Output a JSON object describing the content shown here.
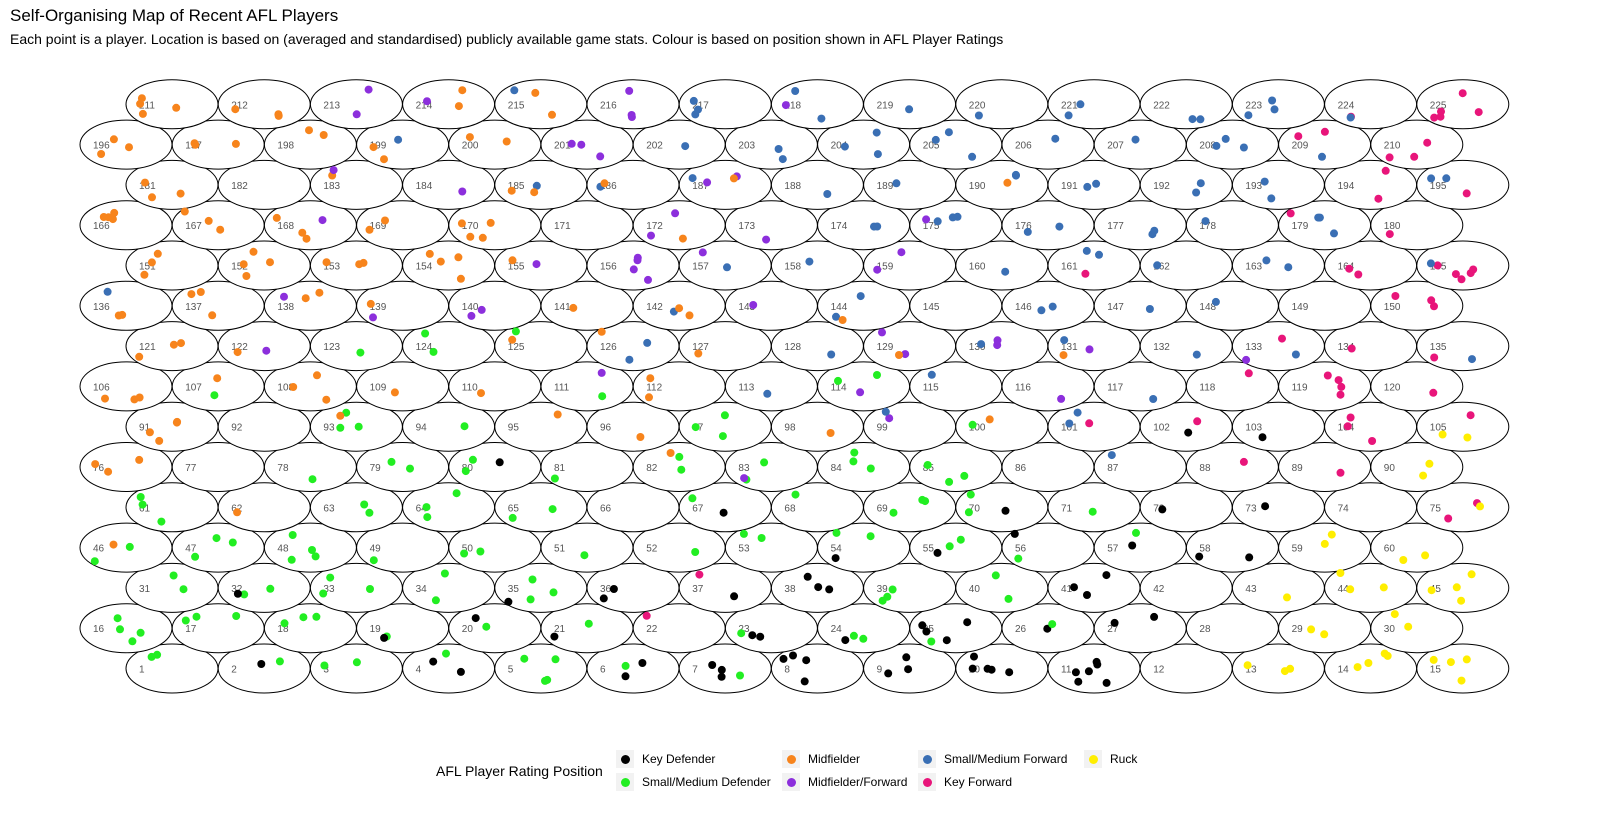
{
  "title": "Self-Organising Map of Recent AFL Players",
  "subtitle": "Each point is a player. Location is based on (averaged and standardised) publicly available game stats. Colour is based on position shown in AFL Player Ratings",
  "legend": {
    "title": "AFL Player Rating Position",
    "items": [
      {
        "key": "KD",
        "label": "Key Defender",
        "color": "#000000"
      },
      {
        "key": "SD",
        "label": "Small/Medium Defender",
        "color": "#22ee22"
      },
      {
        "key": "M",
        "label": "Midfielder",
        "color": "#f7841c"
      },
      {
        "key": "MF",
        "label": "Midfielder/Forward",
        "color": "#8c2fdc"
      },
      {
        "key": "SF",
        "label": "Small/Medium Forward",
        "color": "#3a6fb4"
      },
      {
        "key": "KF",
        "label": "Key Forward",
        "color": "#e8157a"
      },
      {
        "key": "R",
        "label": "Ruck",
        "color": "#ffee00"
      }
    ]
  },
  "chart_data": {
    "type": "scatter",
    "grid": {
      "kind": "hexagonal",
      "columns": 15,
      "rows": 15,
      "nodes": 225,
      "node_labels": "1-225"
    },
    "node_counts": {
      "1": {
        "SD": 2
      },
      "2": {
        "SD": 1,
        "KD": 1
      },
      "3": {
        "SD": 2
      },
      "4": {
        "SD": 1,
        "KD": 2
      },
      "5": {
        "SD": 4
      },
      "6": {
        "KD": 2,
        "SD": 1
      },
      "7": {
        "SD": 1,
        "KD": 3
      },
      "8": {
        "KD": 4
      },
      "9": {
        "KD": 3
      },
      "10": {
        "KD": 5
      },
      "11": {
        "KD": 6
      },
      "12": {},
      "13": {
        "R": 3
      },
      "14": {
        "R": 4
      },
      "15": {
        "R": 4
      },
      "16": {
        "SD": 4
      },
      "17": {
        "SD": 3
      },
      "18": {
        "SD": 3
      },
      "19": {
        "SD": 1,
        "KD": 1
      },
      "20": {
        "KD": 1,
        "SD": 1
      },
      "21": {
        "KD": 1,
        "SD": 1
      },
      "22": {
        "KF": 1
      },
      "23": {
        "KD": 2,
        "SD": 1
      },
      "24": {
        "KD": 1,
        "SD": 2
      },
      "25": {
        "KD": 4,
        "SD": 1
      },
      "26": {
        "KD": 1,
        "SD": 1
      },
      "27": {
        "KD": 2
      },
      "28": {},
      "29": {
        "R": 2
      },
      "30": {
        "R": 2
      },
      "31": {
        "SD": 2
      },
      "32": {
        "SD": 2,
        "KD": 1
      },
      "33": {
        "SD": 3
      },
      "34": {
        "SD": 2
      },
      "35": {
        "SD": 3,
        "KD": 1
      },
      "36": {
        "KD": 2
      },
      "37": {
        "KF": 1,
        "KD": 1
      },
      "38": {
        "KD": 3
      },
      "39": {
        "SD": 3
      },
      "40": {
        "SD": 2
      },
      "41": {
        "KD": 3
      },
      "42": {},
      "43": {
        "R": 1
      },
      "44": {
        "R": 3
      },
      "45": {
        "R": 4
      },
      "46": {
        "SD": 2,
        "M": 1
      },
      "47": {
        "SD": 3
      },
      "48": {
        "SD": 4
      },
      "49": {
        "SD": 1
      },
      "50": {
        "SD": 2
      },
      "51": {
        "SD": 1
      },
      "52": {
        "SD": 1
      },
      "53": {
        "SD": 2
      },
      "54": {
        "KD": 1,
        "SD": 2
      },
      "55": {
        "SD": 2,
        "KD": 1
      },
      "56": {
        "KD": 1,
        "SD": 1
      },
      "57": {
        "KD": 1,
        "SD": 1
      },
      "58": {
        "KD": 2
      },
      "59": {
        "R": 2
      },
      "60": {
        "R": 2
      },
      "61": {
        "SD": 3
      },
      "62": {
        "M": 1
      },
      "63": {
        "SD": 2
      },
      "64": {
        "SD": 3
      },
      "65": {
        "SD": 2
      },
      "66": {},
      "67": {
        "KD": 1,
        "SD": 1
      },
      "68": {
        "SD": 1
      },
      "69": {
        "SD": 3
      },
      "70": {
        "SD": 2,
        "KD": 1
      },
      "71": {
        "SD": 1
      },
      "72": {
        "KD": 1
      },
      "73": {
        "KD": 1
      },
      "74": {},
      "75": {
        "KF": 2,
        "R": 1
      },
      "76": {
        "M": 3
      },
      "77": {},
      "78": {
        "SD": 1
      },
      "79": {
        "SD": 2
      },
      "80": {
        "SD": 2,
        "KD": 1
      },
      "81": {
        "SD": 1
      },
      "82": {
        "SD": 2,
        "M": 1
      },
      "83": {
        "SD": 2,
        "MF": 1
      },
      "84": {
        "SD": 3
      },
      "85": {
        "SD": 3
      },
      "86": {},
      "87": {
        "SF": 1
      },
      "88": {
        "KF": 1
      },
      "89": {
        "KF": 1
      },
      "90": {
        "R": 2
      },
      "91": {
        "M": 4
      },
      "92": {},
      "93": {
        "SD": 3,
        "M": 1
      },
      "94": {
        "SD": 1
      },
      "95": {
        "M": 1
      },
      "96": {
        "M": 1
      },
      "97": {
        "SD": 3
      },
      "98": {
        "M": 1
      },
      "99": {
        "MF": 1,
        "SF": 1
      },
      "100": {
        "SD": 1,
        "M": 1
      },
      "101": {
        "SF": 2,
        "KF": 1
      },
      "102": {
        "KD": 1,
        "KF": 1
      },
      "103": {
        "KD": 1
      },
      "104": {
        "KF": 3
      },
      "105": {
        "R": 2,
        "KF": 1
      },
      "106": {
        "M": 3
      },
      "107": {
        "M": 1,
        "SD": 1
      },
      "108": {
        "M": 3
      },
      "109": {
        "M": 1
      },
      "110": {
        "M": 1
      },
      "111": {
        "MF": 1,
        "SD": 1
      },
      "112": {
        "M": 2
      },
      "113": {
        "SF": 1
      },
      "114": {
        "SD": 2,
        "MF": 1
      },
      "115": {
        "SF": 1
      },
      "116": {
        "MF": 1
      },
      "117": {
        "SF": 1
      },
      "118": {
        "KF": 1
      },
      "119": {
        "KF": 4
      },
      "120": {
        "KF": 1
      },
      "121": {
        "M": 3
      },
      "122": {
        "MF": 1,
        "M": 1
      },
      "123": {
        "SD": 1
      },
      "124": {
        "SD": 2
      },
      "125": {
        "SD": 1,
        "M": 1
      },
      "126": {
        "SF": 2,
        "M": 1
      },
      "127": {
        "M": 1
      },
      "128": {
        "SF": 1
      },
      "129": {
        "MF": 2,
        "M": 1
      },
      "130": {
        "MF": 2,
        "SF": 1
      },
      "131": {
        "MF": 1,
        "M": 1,
        "SF": 1
      },
      "132": {
        "SF": 1
      },
      "133": {
        "MF": 1,
        "KF": 1,
        "SF": 1
      },
      "134": {
        "KF": 1
      },
      "135": {
        "KF": 1,
        "SF": 1
      },
      "136": {
        "SF": 1,
        "M": 2
      },
      "137": {
        "M": 3
      },
      "138": {
        "MF": 1,
        "M": 2
      },
      "139": {
        "MF": 1,
        "M": 1
      },
      "140": {
        "MF": 2
      },
      "141": {
        "M": 1
      },
      "142": {
        "SF": 1,
        "M": 2
      },
      "143": {
        "MF": 1
      },
      "144": {
        "SF": 2,
        "M": 1
      },
      "145": {},
      "146": {
        "SF": 2
      },
      "147": {
        "SF": 1
      },
      "148": {
        "SF": 1
      },
      "149": {},
      "150": {
        "KF": 3
      },
      "151": {
        "M": 3
      },
      "152": {
        "M": 4
      },
      "153": {
        "M": 3
      },
      "154": {
        "M": 4
      },
      "155": {
        "MF": 1,
        "M": 1
      },
      "156": {
        "MF": 4
      },
      "157": {
        "MF": 1,
        "SF": 1
      },
      "158": {
        "SF": 1
      },
      "159": {
        "MF": 2
      },
      "160": {
        "SF": 1
      },
      "161": {
        "KF": 1,
        "SF": 2
      },
      "162": {
        "SF": 1
      },
      "163": {
        "SF": 2
      },
      "164": {
        "KF": 2
      },
      "165": {
        "KF": 5,
        "SF": 1
      },
      "166": {
        "M": 4
      },
      "167": {
        "M": 3
      },
      "168": {
        "MF": 1,
        "M": 3
      },
      "169": {
        "M": 2
      },
      "170": {
        "M": 4
      },
      "171": {},
      "172": {
        "M": 1,
        "MF": 2
      },
      "173": {
        "MF": 1
      },
      "174": {
        "SF": 2
      },
      "175": {
        "SF": 3,
        "MF": 1
      },
      "176": {
        "SF": 2
      },
      "177": {
        "SF": 2
      },
      "178": {
        "SF": 1
      },
      "179": {
        "SF": 3,
        "KF": 1
      },
      "180": {
        "KF": 1
      },
      "181": {
        "M": 3
      },
      "182": {},
      "183": {
        "M": 1,
        "MF": 1
      },
      "184": {
        "MF": 1
      },
      "185": {
        "SF": 1,
        "M": 2
      },
      "186": {
        "SF": 1,
        "M": 1
      },
      "187": {
        "MF": 2,
        "SF": 1,
        "M": 1
      },
      "188": {
        "SF": 1
      },
      "189": {
        "SF": 1
      },
      "190": {
        "SF": 2,
        "M": 1
      },
      "191": {
        "SF": 2
      },
      "192": {
        "SF": 2
      },
      "193": {
        "SF": 2
      },
      "194": {
        "KF": 2
      },
      "195": {
        "SF": 2,
        "KF": 1
      },
      "196": {
        "M": 3
      },
      "197": {
        "M": 3
      },
      "198": {
        "M": 2
      },
      "199": {
        "M": 2,
        "SF": 1
      },
      "200": {
        "M": 2
      },
      "201": {
        "MF": 3
      },
      "202": {
        "SF": 1
      },
      "203": {
        "SF": 2
      },
      "204": {
        "SF": 3
      },
      "205": {
        "SF": 3
      },
      "206": {
        "SF": 1
      },
      "207": {
        "SF": 1
      },
      "208": {
        "SF": 3
      },
      "209": {
        "KF": 2,
        "SF": 1
      },
      "210": {
        "KF": 3
      },
      "211": {
        "M": 4
      },
      "212": {
        "M": 3
      },
      "213": {
        "MF": 2
      },
      "214": {
        "M": 2,
        "MF": 1
      },
      "215": {
        "M": 2,
        "SF": 1
      },
      "216": {
        "MF": 3
      },
      "217": {
        "SF": 3
      },
      "218": {
        "SF": 2,
        "MF": 1
      },
      "219": {
        "SF": 1
      },
      "220": {
        "SF": 1
      },
      "221": {
        "SF": 2
      },
      "222": {
        "SF": 2
      },
      "223": {
        "SF": 3
      },
      "224": {
        "KF": 1,
        "SF": 1
      },
      "225": {
        "KF": 5
      }
    }
  }
}
